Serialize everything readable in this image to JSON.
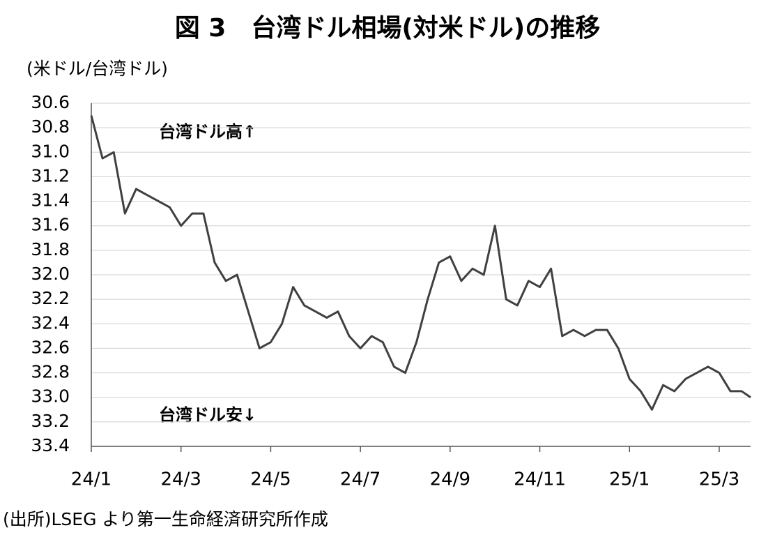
{
  "chart_data": {
    "type": "line",
    "title": "図 3　台湾ドル相場(対米ドル)の推移",
    "y_label": "(米ドル/台湾ドル)",
    "annotations": [
      "台湾ドル高↑",
      "台湾ドル安↓"
    ],
    "source": "(出所)LSEG より第一生命経済研究所作成",
    "x": [
      0,
      0.25,
      0.5,
      0.75,
      1,
      1.25,
      1.5,
      1.75,
      2,
      2.25,
      2.5,
      2.75,
      3,
      3.25,
      3.5,
      3.75,
      4,
      4.25,
      4.5,
      4.75,
      5,
      5.25,
      5.5,
      5.75,
      6,
      6.25,
      6.5,
      6.75,
      7,
      7.25,
      7.5,
      7.75,
      8,
      8.25,
      8.5,
      8.75,
      9,
      9.25,
      9.5,
      9.75,
      10,
      10.25,
      10.5,
      10.75,
      11,
      11.25,
      11.5,
      11.75,
      12,
      12.25,
      12.5,
      12.75,
      13,
      13.25,
      13.5,
      13.75,
      14,
      14.25,
      14.5,
      14.7
    ],
    "series": [
      {
        "color": "#404040",
        "values": [
          30.7,
          31.05,
          31.0,
          31.5,
          31.3,
          31.35,
          31.4,
          31.45,
          31.6,
          31.5,
          31.5,
          31.9,
          32.05,
          32.0,
          32.3,
          32.6,
          32.55,
          32.4,
          32.1,
          32.25,
          32.3,
          32.35,
          32.3,
          32.5,
          32.6,
          32.5,
          32.55,
          32.75,
          32.8,
          32.55,
          32.2,
          31.9,
          31.85,
          32.05,
          31.95,
          32.0,
          31.6,
          32.2,
          32.25,
          32.05,
          32.1,
          31.95,
          32.5,
          32.45,
          32.5,
          32.45,
          32.45,
          32.6,
          32.85,
          32.95,
          33.1,
          32.9,
          32.95,
          32.85,
          32.8,
          32.75,
          32.8,
          32.95,
          32.95,
          33.0
        ]
      }
    ],
    "xlim": [
      0,
      14.7
    ],
    "xticks": [
      {
        "value": 0,
        "label": "24/1"
      },
      {
        "value": 2,
        "label": "24/3"
      },
      {
        "value": 4,
        "label": "24/5"
      },
      {
        "value": 6,
        "label": "24/7"
      },
      {
        "value": 8,
        "label": "24/9"
      },
      {
        "value": 10,
        "label": "24/11"
      },
      {
        "value": 12,
        "label": "25/1"
      },
      {
        "value": 14,
        "label": "25/3"
      }
    ],
    "ylim": [
      30.6,
      33.4
    ],
    "yticks": [
      30.6,
      30.8,
      {
        "value": 31,
        "label": "31.0"
      },
      31.2,
      31.4,
      31.6,
      31.8,
      {
        "value": 32,
        "label": "32.0"
      },
      32.2,
      32.4,
      32.6,
      32.8,
      {
        "value": 33,
        "label": "33.0"
      },
      33.2,
      33.4
    ],
    "y_inverted": true,
    "grid": true,
    "title_color": "#1f3fbf"
  }
}
